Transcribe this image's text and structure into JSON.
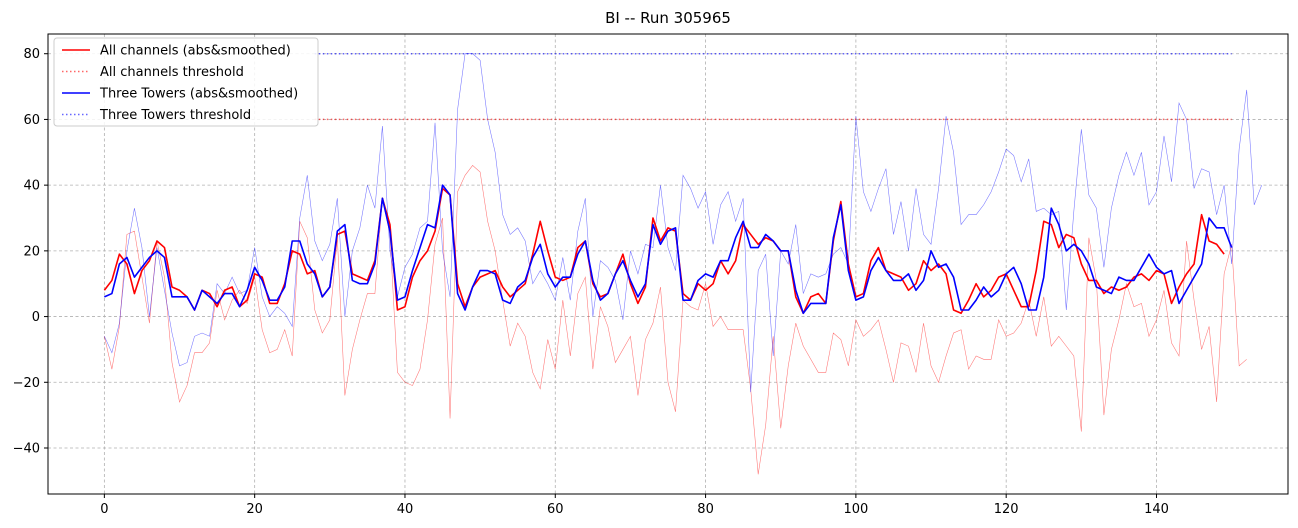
{
  "chart_data": {
    "type": "line",
    "title": "BI -- Run 305965",
    "xlabel": "",
    "ylabel": "",
    "xlim": [
      -7.5,
      157.5
    ],
    "ylim": [
      -54,
      86
    ],
    "x_ticks": [
      0,
      20,
      40,
      60,
      80,
      100,
      120,
      140
    ],
    "y_ticks": [
      -40,
      -20,
      0,
      20,
      40,
      60,
      80
    ],
    "grid": true,
    "legend_position": "top-left",
    "legend": [
      {
        "label": "All channels (abs&smoothed)",
        "color": "#ff0000",
        "style": "solid"
      },
      {
        "label": "All channels threshold",
        "color": "#ff0000",
        "style": "dotted"
      },
      {
        "label": "Three Towers (abs&smoothed)",
        "color": "#0000ff",
        "style": "solid"
      },
      {
        "label": "Three Towers threshold",
        "color": "#0000ff",
        "style": "dotted"
      }
    ],
    "series": [
      {
        "name": "All channels (abs&smoothed)",
        "color": "#ff0000",
        "style": "solid",
        "x_start": 0,
        "values": [
          8,
          11,
          19,
          16,
          7,
          14,
          17,
          23,
          21,
          9,
          8,
          6,
          2,
          8,
          7,
          3,
          8,
          9,
          3,
          5,
          13,
          12,
          4,
          4,
          10,
          20,
          19,
          13,
          14,
          6,
          9,
          25,
          26,
          13,
          12,
          11,
          17,
          36,
          28,
          2,
          3,
          12,
          17,
          20,
          26,
          39,
          37,
          10,
          3,
          9,
          12,
          13,
          14,
          9,
          6,
          8,
          10,
          19,
          29,
          20,
          12,
          11,
          12,
          21,
          23,
          10,
          6,
          7,
          13,
          19,
          10,
          4,
          9,
          30,
          23,
          27,
          26,
          7,
          5,
          10,
          8,
          10,
          17,
          13,
          17,
          28,
          25,
          22,
          24,
          23,
          20,
          20,
          6,
          1,
          6,
          7,
          4,
          23,
          35,
          16,
          6,
          7,
          17,
          21,
          14,
          13,
          12,
          8,
          10,
          17,
          14,
          16,
          13,
          2,
          1,
          5,
          10,
          6,
          8,
          12,
          13,
          8,
          3,
          3,
          14,
          29,
          28,
          21,
          25,
          24,
          16,
          11,
          11,
          7,
          9,
          8,
          9,
          12,
          13,
          11,
          14,
          13,
          4,
          9,
          13,
          16,
          31,
          23,
          22,
          19
        ],
        "line_width": 1.6
      },
      {
        "name": "Three Towers (abs&smoothed)",
        "color": "#0000ff",
        "style": "solid",
        "x_start": 0,
        "values": [
          6,
          7,
          16,
          18,
          12,
          15,
          18,
          20,
          18,
          6,
          6,
          6,
          2,
          8,
          6,
          4,
          7,
          7,
          3,
          8,
          15,
          11,
          5,
          5,
          9,
          23,
          23,
          16,
          13,
          6,
          9,
          26,
          28,
          11,
          10,
          10,
          16,
          36,
          26,
          5,
          6,
          14,
          21,
          28,
          27,
          40,
          37,
          7,
          2,
          9,
          14,
          14,
          13,
          5,
          4,
          9,
          11,
          18,
          22,
          13,
          9,
          12,
          12,
          19,
          23,
          11,
          5,
          7,
          13,
          17,
          11,
          6,
          10,
          28,
          22,
          26,
          27,
          5,
          5,
          11,
          13,
          12,
          17,
          17,
          24,
          29,
          21,
          21,
          25,
          23,
          20,
          20,
          8,
          1,
          4,
          4,
          4,
          24,
          34,
          14,
          5,
          6,
          14,
          18,
          14,
          11,
          11,
          13,
          8,
          11,
          20,
          15,
          16,
          12,
          2,
          2,
          5,
          9,
          6,
          8,
          13,
          15,
          10,
          2,
          2,
          12,
          33,
          28,
          20,
          22,
          20,
          16,
          9,
          8,
          7,
          12,
          11,
          11,
          15,
          19,
          15,
          13,
          14,
          4,
          8,
          12,
          16,
          30,
          27,
          27,
          21
        ],
        "line_width": 1.6
      },
      {
        "name": "",
        "color": "#ff0000",
        "style": "thin",
        "x_start": 0,
        "values": [
          -6,
          -16,
          -3,
          25,
          26,
          12,
          -2,
          23,
          12,
          -14,
          -26,
          -21,
          -11,
          -11,
          -8,
          8,
          -1,
          5,
          8,
          4,
          12,
          -4,
          -11,
          -10,
          -4,
          -12,
          29,
          24,
          2,
          -5,
          -1,
          24,
          -24,
          -10,
          -1,
          7,
          7,
          36,
          25,
          -17,
          -20,
          -21,
          -16,
          -1,
          22,
          30,
          -31,
          38,
          43,
          46,
          44,
          29,
          20,
          5,
          -9,
          -2,
          -6,
          -17,
          -22,
          -7,
          -16,
          5,
          -12,
          7,
          12,
          -16,
          3,
          -3,
          -14,
          -10,
          -6,
          -24,
          -7,
          -2,
          9,
          -20,
          -29,
          5,
          3,
          2,
          10,
          -3,
          0,
          -4,
          -4,
          -4,
          -22,
          -48,
          -33,
          -6,
          -34,
          -15,
          -2,
          -9,
          -13,
          -17,
          -17,
          -5,
          -7,
          -15,
          -1,
          -6,
          -4,
          -1,
          -10,
          -20,
          -8,
          -9,
          -17,
          -2,
          -15,
          -20,
          -12,
          -5,
          -4,
          -16,
          -12,
          -13,
          -13,
          -1,
          -6,
          -5,
          -2,
          5,
          -6,
          6,
          -9,
          -6,
          -9,
          -12,
          -35,
          24,
          11,
          -30,
          -10,
          -1,
          10,
          3,
          4,
          -6,
          -1,
          8,
          -8,
          -12,
          23,
          5,
          -10,
          -3,
          -26,
          13,
          22,
          -15,
          -13
        ]
      },
      {
        "name": "",
        "color": "#0000ff",
        "style": "thin",
        "x_start": 0,
        "values": [
          -6,
          -11,
          -2,
          20,
          33,
          21,
          0,
          21,
          8,
          -5,
          -15,
          -14,
          -6,
          -5,
          -6,
          10,
          7,
          12,
          7,
          8,
          21,
          6,
          0,
          3,
          1,
          -3,
          30,
          43,
          23,
          17,
          22,
          36,
          0,
          20,
          27,
          40,
          33,
          58,
          20,
          6,
          15,
          19,
          27,
          29,
          59,
          20,
          6,
          63,
          80,
          80,
          78,
          60,
          50,
          31,
          25,
          27,
          23,
          10,
          14,
          10,
          5,
          18,
          5,
          26,
          36,
          0,
          17,
          15,
          11,
          -1,
          20,
          13,
          22,
          21,
          40,
          21,
          14,
          43,
          39,
          33,
          38,
          22,
          34,
          38,
          29,
          36,
          -23,
          14,
          19,
          -12,
          20,
          16,
          28,
          7,
          13,
          12,
          13,
          19,
          21,
          16,
          61,
          38,
          32,
          39,
          45,
          25,
          35,
          20,
          39,
          25,
          22,
          39,
          61,
          50,
          28,
          31,
          31,
          34,
          38,
          44,
          51,
          49,
          41,
          48,
          32,
          33,
          31,
          32,
          2,
          32,
          57,
          37,
          33,
          15,
          33,
          43,
          50,
          43,
          50,
          34,
          38,
          55,
          41,
          65,
          60,
          39,
          45,
          44,
          31,
          40,
          16,
          51,
          69,
          34,
          40
        ]
      },
      {
        "name": "All channels threshold",
        "color": "#ff0000",
        "style": "dotted",
        "x": [
          28,
          150
        ],
        "values": [
          60,
          60
        ]
      },
      {
        "name": "Three Towers threshold",
        "color": "#0000ff",
        "style": "dotted",
        "x": [
          28,
          150
        ],
        "values": [
          80,
          80
        ]
      }
    ]
  }
}
